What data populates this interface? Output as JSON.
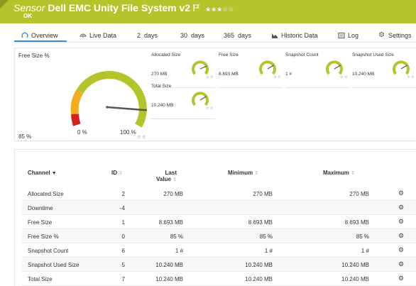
{
  "header": {
    "sensor_word": "Sensor",
    "sensor_name": "Dell EMC Unity File System v2",
    "stars": "★★★☆☆",
    "status": "OK",
    "bg_color": "#b5c42b"
  },
  "tabs": [
    {
      "label": "Overview",
      "icon": "overview-icon"
    },
    {
      "label": "Live Data",
      "icon": "live-data-icon"
    },
    {
      "label": "2  days"
    },
    {
      "label": "30  days"
    },
    {
      "label": "365  days"
    },
    {
      "label": "Historic Data",
      "icon": "historic-data-icon"
    },
    {
      "label": "Log",
      "icon": "log-icon"
    },
    {
      "label": "Settings",
      "icon": "gear-icon"
    }
  ],
  "primary_gauge": {
    "label": "Free Size %",
    "value": "85 %",
    "value_fraction": 0.85,
    "min": "0 %",
    "max": "100 %"
  },
  "small_gauges": [
    {
      "label": "Allocated Size",
      "value": "270 MB",
      "fraction": 0.75
    },
    {
      "label": "Free Size",
      "value": "8.693 MB",
      "fraction": 0.72
    },
    {
      "label": "Snapshot Count",
      "value": "1 #",
      "fraction": 0.72
    },
    {
      "label": "Snapshot Used Size",
      "value": "10.240 MB",
      "fraction": 0.72
    },
    {
      "label": "Total Size",
      "value": "10.240 MB",
      "fraction": 0.72
    }
  ],
  "table": {
    "headers": {
      "channel": "Channel",
      "id": "ID",
      "last1": "Last",
      "last2": "Value",
      "min": "Minimum",
      "max": "Maximum"
    },
    "rows": [
      {
        "name": "Allocated Size",
        "id": "2",
        "last": "270 MB",
        "min": "270 MB",
        "max": "270 MB"
      },
      {
        "name": "Downtime",
        "id": "-4",
        "last": "",
        "min": "",
        "max": ""
      },
      {
        "name": "Free Size",
        "id": "1",
        "last": "8.693 MB",
        "min": "8.693 MB",
        "max": "8.693 MB"
      },
      {
        "name": "Free Size %",
        "id": "0",
        "last": "85 %",
        "min": "85 %",
        "max": "85 %"
      },
      {
        "name": "Snapshot Count",
        "id": "6",
        "last": "1 #",
        "min": "1 #",
        "max": "1 #"
      },
      {
        "name": "Snapshot Used Size",
        "id": "5",
        "last": "10.240 MB",
        "min": "10.240 MB",
        "max": "10.240 MB"
      },
      {
        "name": "Total Size",
        "id": "7",
        "last": "10.240 MB",
        "min": "10.240 MB",
        "max": "10.240 MB"
      }
    ]
  }
}
